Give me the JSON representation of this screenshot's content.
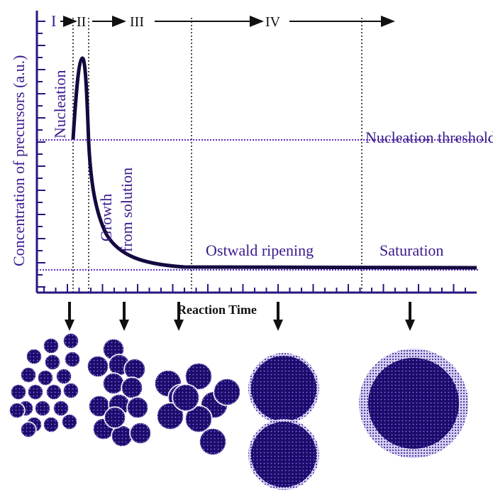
{
  "stages": [
    "I",
    "II",
    "III",
    "IV"
  ],
  "labels": {
    "nucleation": "Nucleation",
    "growth": [
      "Growth",
      "from solution"
    ],
    "ostwald": "Ostwald ripening",
    "saturation": "Saturation",
    "threshold": "Nucleation threshold"
  },
  "axes": {
    "y": "Concentration of precursors (a.u.)",
    "x": "Reaction Time"
  }
}
